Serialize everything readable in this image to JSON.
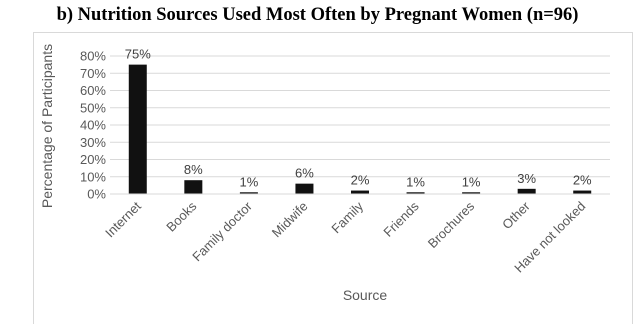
{
  "title": "b)  Nutrition Sources Used Most Often by Pregnant Women (n=96)",
  "chart_data": {
    "type": "bar",
    "title": "b)  Nutrition Sources Used Most Often by Pregnant Women (n=96)",
    "xlabel": "Source",
    "ylabel": "Percentage of Participants",
    "categories": [
      "Internet",
      "Books",
      "Family doctor",
      "Midwife",
      "Family",
      "Friends",
      "Brochures",
      "Other",
      "Have not looked"
    ],
    "values": [
      75,
      8,
      1,
      6,
      2,
      1,
      1,
      3,
      2
    ],
    "data_labels": [
      "75%",
      "8%",
      "1%",
      "6%",
      "2%",
      "1%",
      "1%",
      "3%",
      "2%"
    ],
    "yticks": [
      "0%",
      "10%",
      "20%",
      "30%",
      "40%",
      "50%",
      "60%",
      "70%",
      "80%"
    ],
    "ylim": [
      0,
      80
    ],
    "grid": true,
    "bar_color": "#111111",
    "grid_color": "#d9d9d9"
  }
}
